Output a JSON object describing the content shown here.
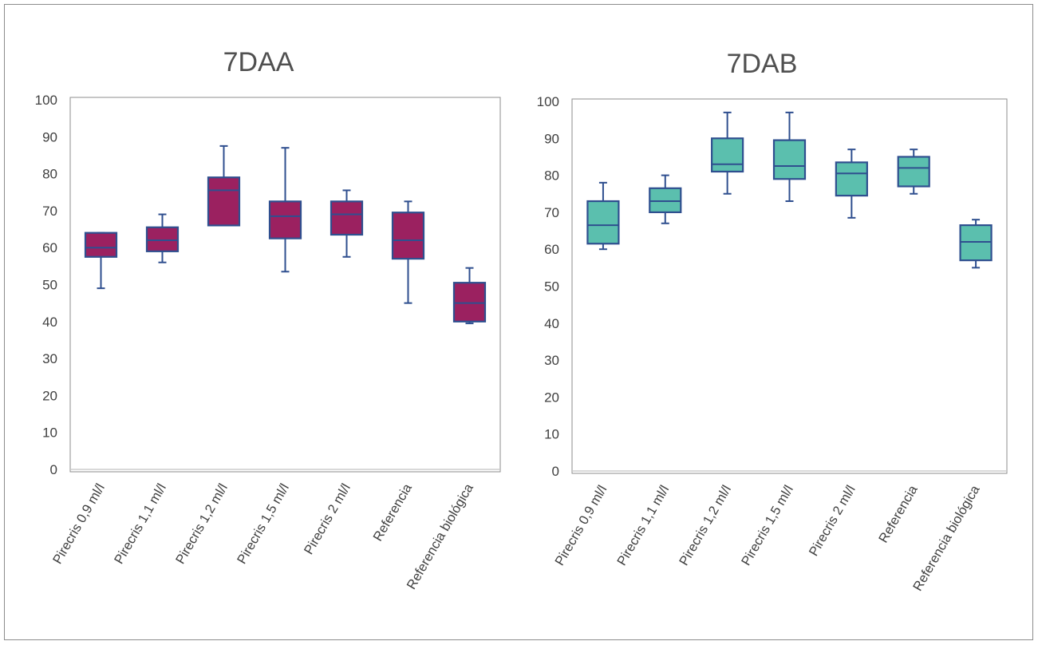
{
  "chart_data": [
    {
      "type": "box",
      "title": "7DAA",
      "ylim": [
        0,
        100
      ],
      "yticks": [
        "0",
        "10",
        "20",
        "30",
        "40",
        "50",
        "60",
        "70",
        "80",
        "90",
        "100"
      ],
      "categories": [
        "Pirecris 0,9 ml/l",
        "Pirecris 1,1 ml/l",
        "Pirecris 1,2 ml/l",
        "Pirecris 1,5 ml/l",
        "Pirecris 2 ml/l",
        "Referencia",
        "Referencia biológica"
      ],
      "boxes": [
        {
          "min": 49,
          "q1": 57.5,
          "median": 60,
          "q3": 64,
          "max": 64
        },
        {
          "min": 56,
          "q1": 59,
          "median": 62,
          "q3": 65.5,
          "max": 69
        },
        {
          "min": 66,
          "q1": 66,
          "median": 75.5,
          "q3": 79,
          "max": 87.5
        },
        {
          "min": 53.5,
          "q1": 62.5,
          "median": 68.5,
          "q3": 72.5,
          "max": 87
        },
        {
          "min": 57.5,
          "q1": 63.5,
          "median": 69,
          "q3": 72.5,
          "max": 75.5
        },
        {
          "min": 45,
          "q1": 57,
          "median": 62,
          "q3": 69.5,
          "max": 72.5
        },
        {
          "min": 39.5,
          "q1": 40,
          "median": 45,
          "q3": 50.5,
          "max": 54.5
        }
      ],
      "box_color": "#9b2160",
      "line_color": "#2f4f8f",
      "grid": false
    },
    {
      "type": "box",
      "title": "7DAB",
      "ylim": [
        0,
        100
      ],
      "yticks": [
        "0",
        "10",
        "20",
        "30",
        "40",
        "50",
        "60",
        "70",
        "80",
        "90",
        "100"
      ],
      "categories": [
        "Pirecris 0,9 ml/l",
        "Pirecris 1,1 ml/l",
        "Pirecris 1,2 ml/l",
        "Pirecris 1,5 ml/l",
        "Pirecris 2 ml/l",
        "Referencia",
        "Referencia biológica"
      ],
      "boxes": [
        {
          "min": 60,
          "q1": 61.5,
          "median": 66.5,
          "q3": 73,
          "max": 78
        },
        {
          "min": 67,
          "q1": 70,
          "median": 73,
          "q3": 76.5,
          "max": 80
        },
        {
          "min": 75,
          "q1": 81,
          "median": 83,
          "q3": 90,
          "max": 97
        },
        {
          "min": 73,
          "q1": 79,
          "median": 82.5,
          "q3": 89.5,
          "max": 97
        },
        {
          "min": 68.5,
          "q1": 74.5,
          "median": 80.5,
          "q3": 83.5,
          "max": 87
        },
        {
          "min": 75,
          "q1": 77,
          "median": 82,
          "q3": 85,
          "max": 87
        },
        {
          "min": 55,
          "q1": 57,
          "median": 62,
          "q3": 66.5,
          "max": 68
        }
      ],
      "box_color": "#5bbfae",
      "line_color": "#2f4f8f",
      "grid": false
    }
  ]
}
